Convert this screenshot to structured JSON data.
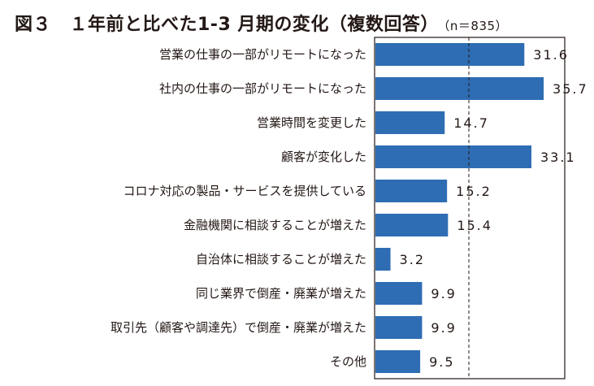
{
  "title": "図３　１年前と比べた1-3 月期の変化（複数回答）",
  "n_label": "（n＝835）",
  "chart_data": {
    "type": "bar",
    "orientation": "horizontal",
    "title": "図３　１年前と比べた1-3 月期の変化（複数回答）",
    "categories": [
      "営業の仕事の一部がリモートになった",
      "社内の仕事の一部がリモートになった",
      "営業時間を変更した",
      "顧客が変化した",
      "コロナ対応の製品・サービスを提供している",
      "金融機関に相談することが増えた",
      "自治体に相談することが増えた",
      "同じ業界で倒産・廃業が増えた",
      "取引先（顧客や調達先）で倒産・廃業が増えた",
      "その他"
    ],
    "values": [
      31.6,
      35.7,
      14.7,
      33.1,
      15.2,
      15.4,
      3.2,
      9.9,
      9.9,
      9.5
    ],
    "value_labels": [
      "31.6",
      "35.7",
      "14.7",
      "33.1",
      "15.2",
      "15.4",
      "3.2",
      "9.9",
      "9.9",
      "9.5"
    ],
    "xlim": [
      0,
      40
    ],
    "reference_line": 20,
    "bar_color": "#2e6db4",
    "xlabel": "",
    "ylabel": ""
  }
}
